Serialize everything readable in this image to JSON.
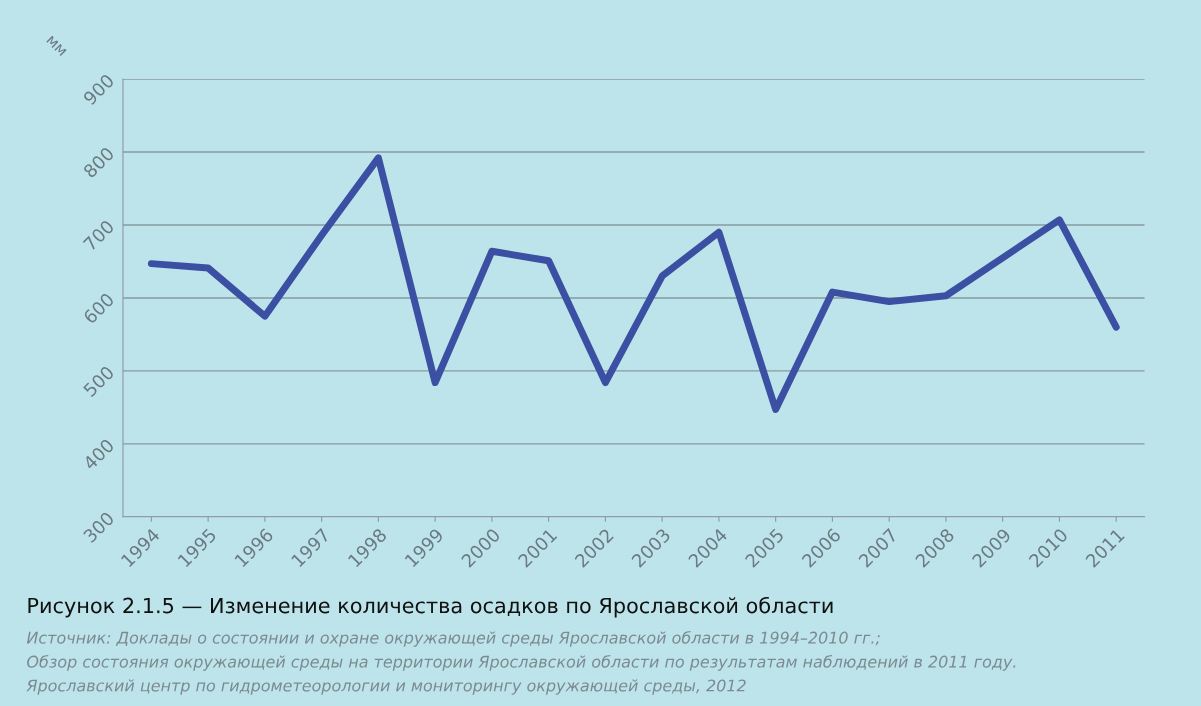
{
  "chart_data": {
    "type": "line",
    "title": "Рисунок 2.1.5 — Изменение количества осадков по Ярославской области",
    "ylabel": "мм",
    "categories": [
      "1994",
      "1995",
      "1996",
      "1997",
      "1998",
      "1999",
      "2000",
      "2001",
      "2002",
      "2003",
      "2004",
      "2005",
      "2006",
      "2007",
      "2008",
      "2009",
      "2010",
      "2011"
    ],
    "series": [
      {
        "color": "#3b4fa3",
        "values": [
          647,
          641,
          575,
          686,
          792,
          484,
          664,
          651,
          484,
          630,
          690,
          447,
          608,
          595,
          603,
          655,
          707,
          560
        ]
      }
    ],
    "ylim": [
      300,
      900
    ],
    "yticks": [
      300,
      400,
      500,
      600,
      700,
      800,
      900
    ],
    "grid": "y",
    "legend": false,
    "marker": "none",
    "line_style": "solid",
    "annotations": [
      "Источник: Доклады о состоянии и охране окружающей среды Ярославской области в 1994–2010 гг.;",
      "Обзор состояния окружающей среды на территории Ярославской области по результатам наблюдений в 2011 году.",
      "Ярославский центр по гидрометеорологии и мониторингу окружающей среды, 2012"
    ]
  }
}
